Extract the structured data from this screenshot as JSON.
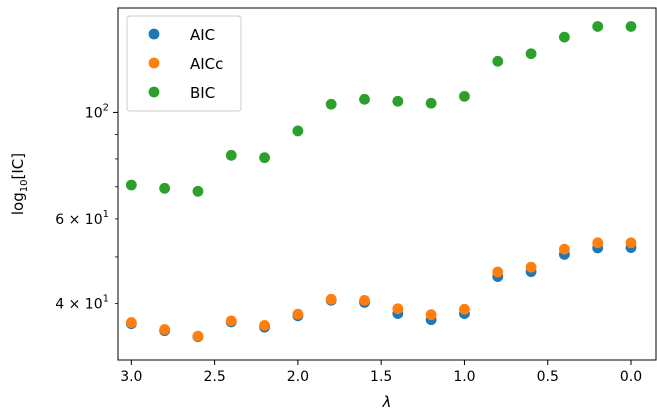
{
  "chart_data": {
    "type": "scatter",
    "xlabel": "λ",
    "ylabel_parts": {
      "base": "log",
      "sub": "10",
      "rest": "[IC]"
    },
    "x_inverted": true,
    "xlim": [
      3.08,
      -0.15
    ],
    "y_scale": "log",
    "ylim": [
      30.5,
      165
    ],
    "x": [
      3.0,
      2.8,
      2.6,
      2.4,
      2.2,
      2.0,
      1.8,
      1.6,
      1.4,
      1.2,
      1.0,
      0.8,
      0.6,
      0.4,
      0.2,
      0.0
    ],
    "x_ticks": [
      {
        "value": 3.0,
        "label": "3.0"
      },
      {
        "value": 2.5,
        "label": "2.5"
      },
      {
        "value": 2.0,
        "label": "2.0"
      },
      {
        "value": 1.5,
        "label": "1.5"
      },
      {
        "value": 1.0,
        "label": "1.0"
      },
      {
        "value": 0.5,
        "label": "0.5"
      },
      {
        "value": 0.0,
        "label": "0.0"
      }
    ],
    "y_major_ticks": [
      {
        "value": 100,
        "base": "10",
        "exp": "2"
      }
    ],
    "y_minor_ticks": [
      {
        "value": 40,
        "mant": "4",
        "base": "10",
        "exp": "1"
      },
      {
        "value": 60,
        "mant": "6",
        "base": "10",
        "exp": "1"
      }
    ],
    "y_minor_unlabeled": [
      50,
      70,
      80,
      90
    ],
    "series": [
      {
        "name": "AIC",
        "color": "#1f77b4",
        "values": [
          36.3,
          35.1,
          34.1,
          36.6,
          35.7,
          37.7,
          40.6,
          40.2,
          38.1,
          37.0,
          38.1,
          45.5,
          46.6,
          50.6,
          52.2,
          52.3
        ]
      },
      {
        "name": "AICc",
        "color": "#ff7f0e",
        "values": [
          36.5,
          35.3,
          34.2,
          36.8,
          36.0,
          38.0,
          40.8,
          40.6,
          39.0,
          37.9,
          38.9,
          46.5,
          47.6,
          51.9,
          53.5,
          53.5
        ]
      },
      {
        "name": "BIC",
        "color": "#2ca02c",
        "values": [
          70.6,
          69.5,
          68.5,
          81.4,
          80.5,
          91.5,
          104.0,
          106.5,
          105.5,
          104.5,
          108.0,
          127.8,
          132.5,
          143.5,
          151.0,
          151.0
        ]
      }
    ],
    "legend_position": "top-left"
  }
}
